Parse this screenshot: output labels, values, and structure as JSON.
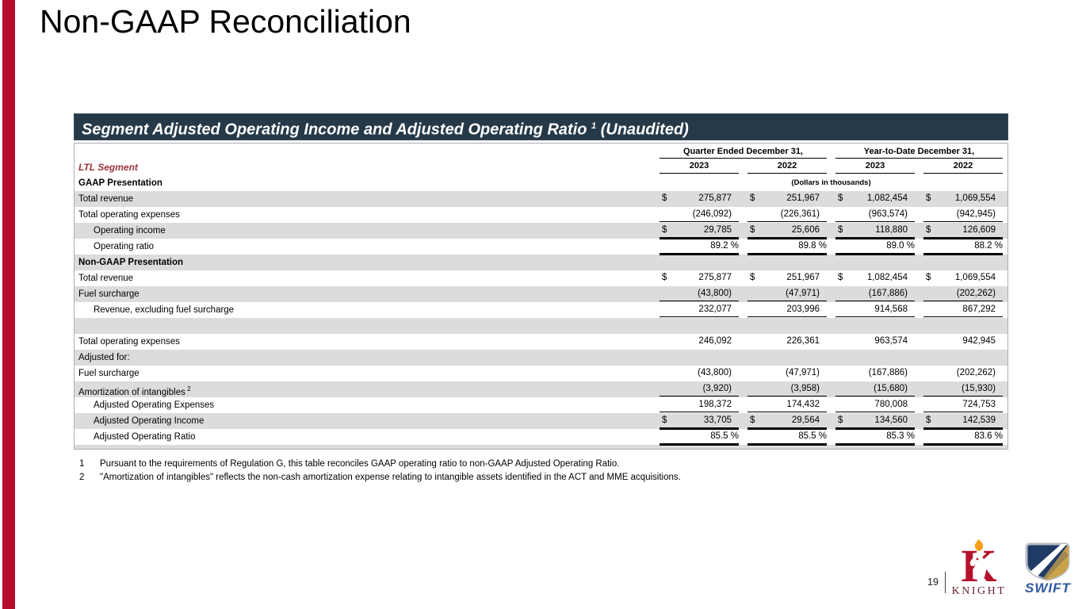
{
  "slide": {
    "title": "Non-GAAP Reconciliation",
    "page_number": "19"
  },
  "table": {
    "title": "Segment Adjusted Operating Income and Adjusted Operating Ratio",
    "title_sup": "1",
    "title_suffix": "(Unaudited)",
    "segment_label": "LTL Segment",
    "col_groups": [
      "Quarter Ended December 31,",
      "Year-to-Date December 31,"
    ],
    "years": [
      "2023",
      "2022",
      "2023",
      "2022"
    ],
    "gaap_header": "GAAP Presentation",
    "units_note": "(Dollars in thousands)",
    "rows": [
      {
        "label": "Total revenue",
        "shaded": true,
        "dollar": true,
        "values": [
          "275,877",
          "251,967",
          "1,082,454",
          "1,069,554"
        ],
        "line": "none"
      },
      {
        "label": "Total operating expenses",
        "shaded": false,
        "values": [
          "(246,092)",
          "(226,361)",
          "(963,574)",
          "(942,945)"
        ],
        "line": "single"
      },
      {
        "label": "Operating income",
        "indent": true,
        "shaded": true,
        "dollar": true,
        "values": [
          "29,785",
          "25,606",
          "118,880",
          "126,609"
        ],
        "line": "double"
      },
      {
        "label": "Operating ratio",
        "indent": true,
        "shaded": false,
        "percent": true,
        "values": [
          "89.2",
          "89.8",
          "89.0",
          "88.2"
        ],
        "line": "double"
      },
      {
        "label": "Non-GAAP Presentation",
        "bold": true,
        "shaded": true,
        "values": null
      },
      {
        "label": "Total revenue",
        "shaded": false,
        "dollar": true,
        "values": [
          "275,877",
          "251,967",
          "1,082,454",
          "1,069,554"
        ],
        "line": "none"
      },
      {
        "label": "Fuel surcharge",
        "shaded": true,
        "values": [
          "(43,800)",
          "(47,971)",
          "(167,886)",
          "(202,262)"
        ],
        "line": "single"
      },
      {
        "label": "Revenue, excluding fuel surcharge",
        "indent": true,
        "shaded": false,
        "values": [
          "232,077",
          "203,996",
          "914,568",
          "867,292"
        ],
        "line": "single"
      },
      {
        "label": "",
        "shaded": true,
        "values": null
      },
      {
        "label": "Total operating expenses",
        "shaded": false,
        "values": [
          "246,092",
          "226,361",
          "963,574",
          "942,945"
        ],
        "line": "none"
      },
      {
        "label": "Adjusted for:",
        "shaded": true,
        "values": null
      },
      {
        "label": "Fuel surcharge",
        "shaded": false,
        "values": [
          "(43,800)",
          "(47,971)",
          "(167,886)",
          "(202,262)"
        ],
        "line": "none"
      },
      {
        "label": "Amortization of intangibles",
        "sup": "2",
        "shaded": true,
        "values": [
          "(3,920)",
          "(3,958)",
          "(15,680)",
          "(15,930)"
        ],
        "line": "single"
      },
      {
        "label": "Adjusted Operating Expenses",
        "indent": true,
        "shaded": false,
        "values": [
          "198,372",
          "174,432",
          "780,008",
          "724,753"
        ],
        "line": "single"
      },
      {
        "label": "Adjusted Operating Income",
        "indent": true,
        "shaded": true,
        "dollar": true,
        "values": [
          "33,705",
          "29,564",
          "134,560",
          "142,539"
        ],
        "line": "double"
      },
      {
        "label": "Adjusted Operating Ratio",
        "indent": true,
        "shaded": false,
        "percent": true,
        "values": [
          "85.5",
          "85.5",
          "85.3",
          "83.6"
        ],
        "line": "double"
      }
    ]
  },
  "footnotes": [
    {
      "num": "1",
      "text": "Pursuant to the requirements of Regulation G, this table reconciles GAAP operating ratio to non-GAAP Adjusted Operating Ratio."
    },
    {
      "num": "2",
      "text": "\"Amortization of intangibles\" reflects the non-cash amortization expense relating to intangible assets identified in the ACT and MME acquisitions."
    }
  ],
  "logos": {
    "knight_text": "KNIGHT",
    "swift_text": "SWIFT"
  },
  "colors": {
    "accent_bar": "#B60C2C",
    "table_header_bg": "#263949",
    "row_shade": "#DCDCDC",
    "segment_label": "#9A3539",
    "knight_red": "#B5122B",
    "knight_text": "#66252E",
    "knight_flame": "#F6A01B",
    "swift_navy": "#203A66",
    "swift_gold": "#C9A24B",
    "swift_blue": "#2456A8"
  }
}
